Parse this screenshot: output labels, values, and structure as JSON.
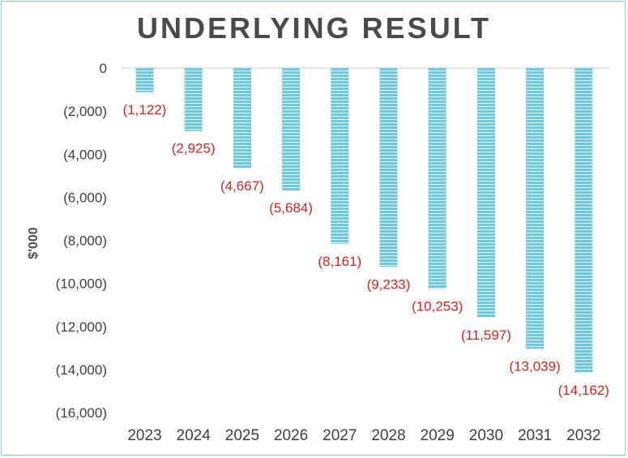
{
  "chart_data": {
    "type": "bar",
    "title": "UNDERLYING RESULT",
    "ylabel": "$'000",
    "xlabel": "",
    "categories": [
      "2023",
      "2024",
      "2025",
      "2026",
      "2027",
      "2028",
      "2029",
      "2030",
      "2031",
      "2032"
    ],
    "values": [
      -1122,
      -2925,
      -4667,
      -5684,
      -8161,
      -9233,
      -10253,
      -11597,
      -13039,
      -14162
    ],
    "data_labels": [
      "(1,122)",
      "(2,925)",
      "(4,667)",
      "(5,684)",
      "(8,161)",
      "(9,233)",
      "(10,253)",
      "(11,597)",
      "(13,039)",
      "(14,162)"
    ],
    "yticks": [
      0,
      -2000,
      -4000,
      -6000,
      -8000,
      -10000,
      -12000,
      -14000,
      -16000
    ],
    "ytick_labels": [
      "0",
      "(2,000)",
      "(4,000)",
      "(6,000)",
      "(8,000)",
      "(10,000)",
      "(12,000)",
      "(14,000)",
      "(16,000)"
    ],
    "ylim": [
      -16000,
      0
    ],
    "grid": false,
    "colors": {
      "bar": "#6cc9e0",
      "bar_stripe": "#ffffff",
      "data_label": "#e02020",
      "axis_text": "#404040",
      "title": "#4a4a4a",
      "border": "#8ec9dc"
    }
  }
}
